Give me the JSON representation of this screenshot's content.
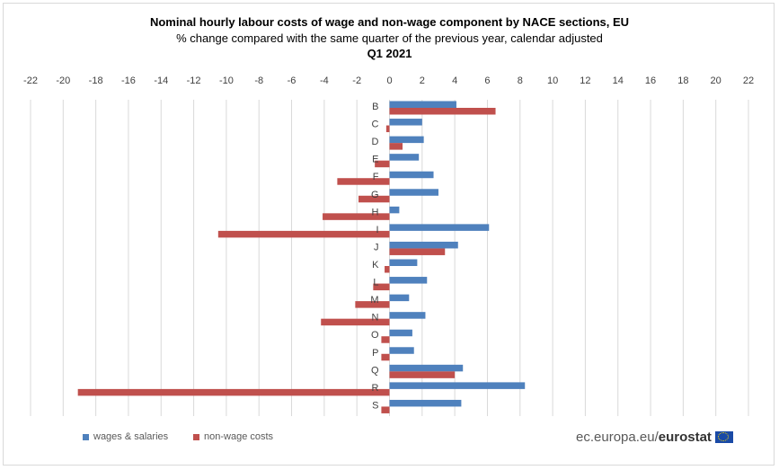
{
  "chart_data": {
    "type": "bar",
    "orientation": "horizontal",
    "title": "Nominal hourly  labour costs  of wage and non-wage component by NACE  sections,  EU",
    "subtitle": "% change compared with the same quarter of the previous  year, calendar adjusted",
    "period": "Q1 2021",
    "xlim": [
      -22,
      22
    ],
    "xticks": [
      "-22",
      "-20",
      "-18",
      "-16",
      "-14",
      "-12",
      "-10",
      "-8",
      "-6",
      "-4",
      "-2",
      "0",
      "2",
      "4",
      "6",
      "8",
      "10",
      "12",
      "14",
      "16",
      "18",
      "20",
      "22"
    ],
    "categories": [
      "B",
      "C",
      "D",
      "E",
      "F",
      "G",
      "H",
      "I",
      "J",
      "K",
      "L",
      "M",
      "N",
      "O",
      "P",
      "Q",
      "R",
      "S"
    ],
    "series": [
      {
        "name": "wages & salaries",
        "color": "#4f81bd",
        "values": [
          4.1,
          2.0,
          2.1,
          1.8,
          2.7,
          3.0,
          0.6,
          6.1,
          4.2,
          1.7,
          2.3,
          1.2,
          2.2,
          1.4,
          1.5,
          4.5,
          8.3,
          4.4
        ]
      },
      {
        "name": "non-wage costs",
        "color": "#c0504d",
        "values": [
          6.5,
          -0.2,
          0.8,
          -0.9,
          -3.2,
          -1.9,
          -4.1,
          -10.5,
          3.4,
          -0.3,
          -1.0,
          -2.1,
          -4.2,
          -0.5,
          -0.5,
          4.0,
          -19.1,
          -0.5
        ]
      }
    ]
  },
  "legend": {
    "wages_label": "wages & salaries",
    "nonwage_label": "non-wage costs"
  },
  "source": {
    "site": "ec.europa.eu/",
    "brand": "eurostat"
  }
}
